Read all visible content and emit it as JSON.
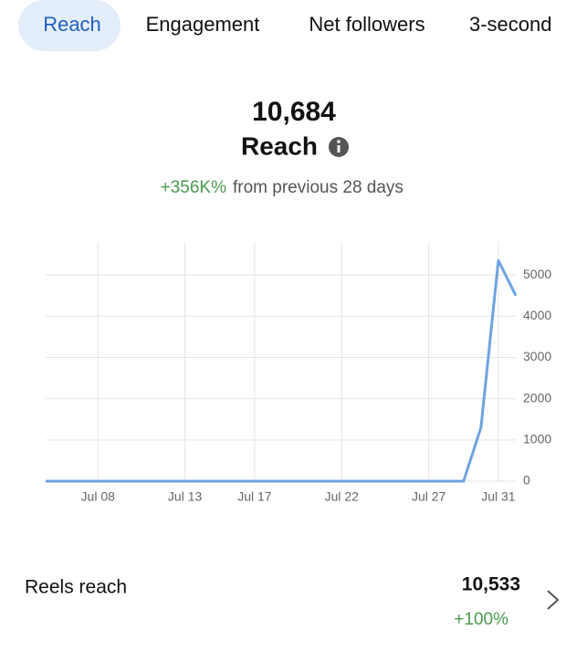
{
  "tabs": [
    "Reach",
    "Engagement",
    "Net followers",
    "3-second"
  ],
  "summary": {
    "value": "10,684",
    "label": "Reach",
    "change": "+356K%",
    "comparison": "from previous 28 days"
  },
  "chart_data": {
    "type": "line",
    "categories": [
      null,
      null,
      null,
      "Jul 08",
      null,
      null,
      null,
      null,
      "Jul 13",
      null,
      null,
      null,
      "Jul 17",
      null,
      null,
      null,
      null,
      "Jul 22",
      null,
      null,
      null,
      null,
      "Jul 27",
      null,
      null,
      null,
      "Jul 31",
      null
    ],
    "values": [
      0,
      0,
      0,
      0,
      0,
      0,
      0,
      0,
      0,
      0,
      0,
      0,
      0,
      0,
      0,
      0,
      0,
      0,
      0,
      0,
      0,
      0,
      0,
      0,
      0,
      1300,
      5350,
      4500
    ],
    "color": "#6fa3e0",
    "ylim": [
      0,
      5800
    ],
    "yticks": [
      0,
      1000,
      2000,
      3000,
      4000,
      5000
    ],
    "grid": true
  },
  "reels": {
    "label": "Reels reach",
    "value": "10,533",
    "change": "+100%"
  }
}
